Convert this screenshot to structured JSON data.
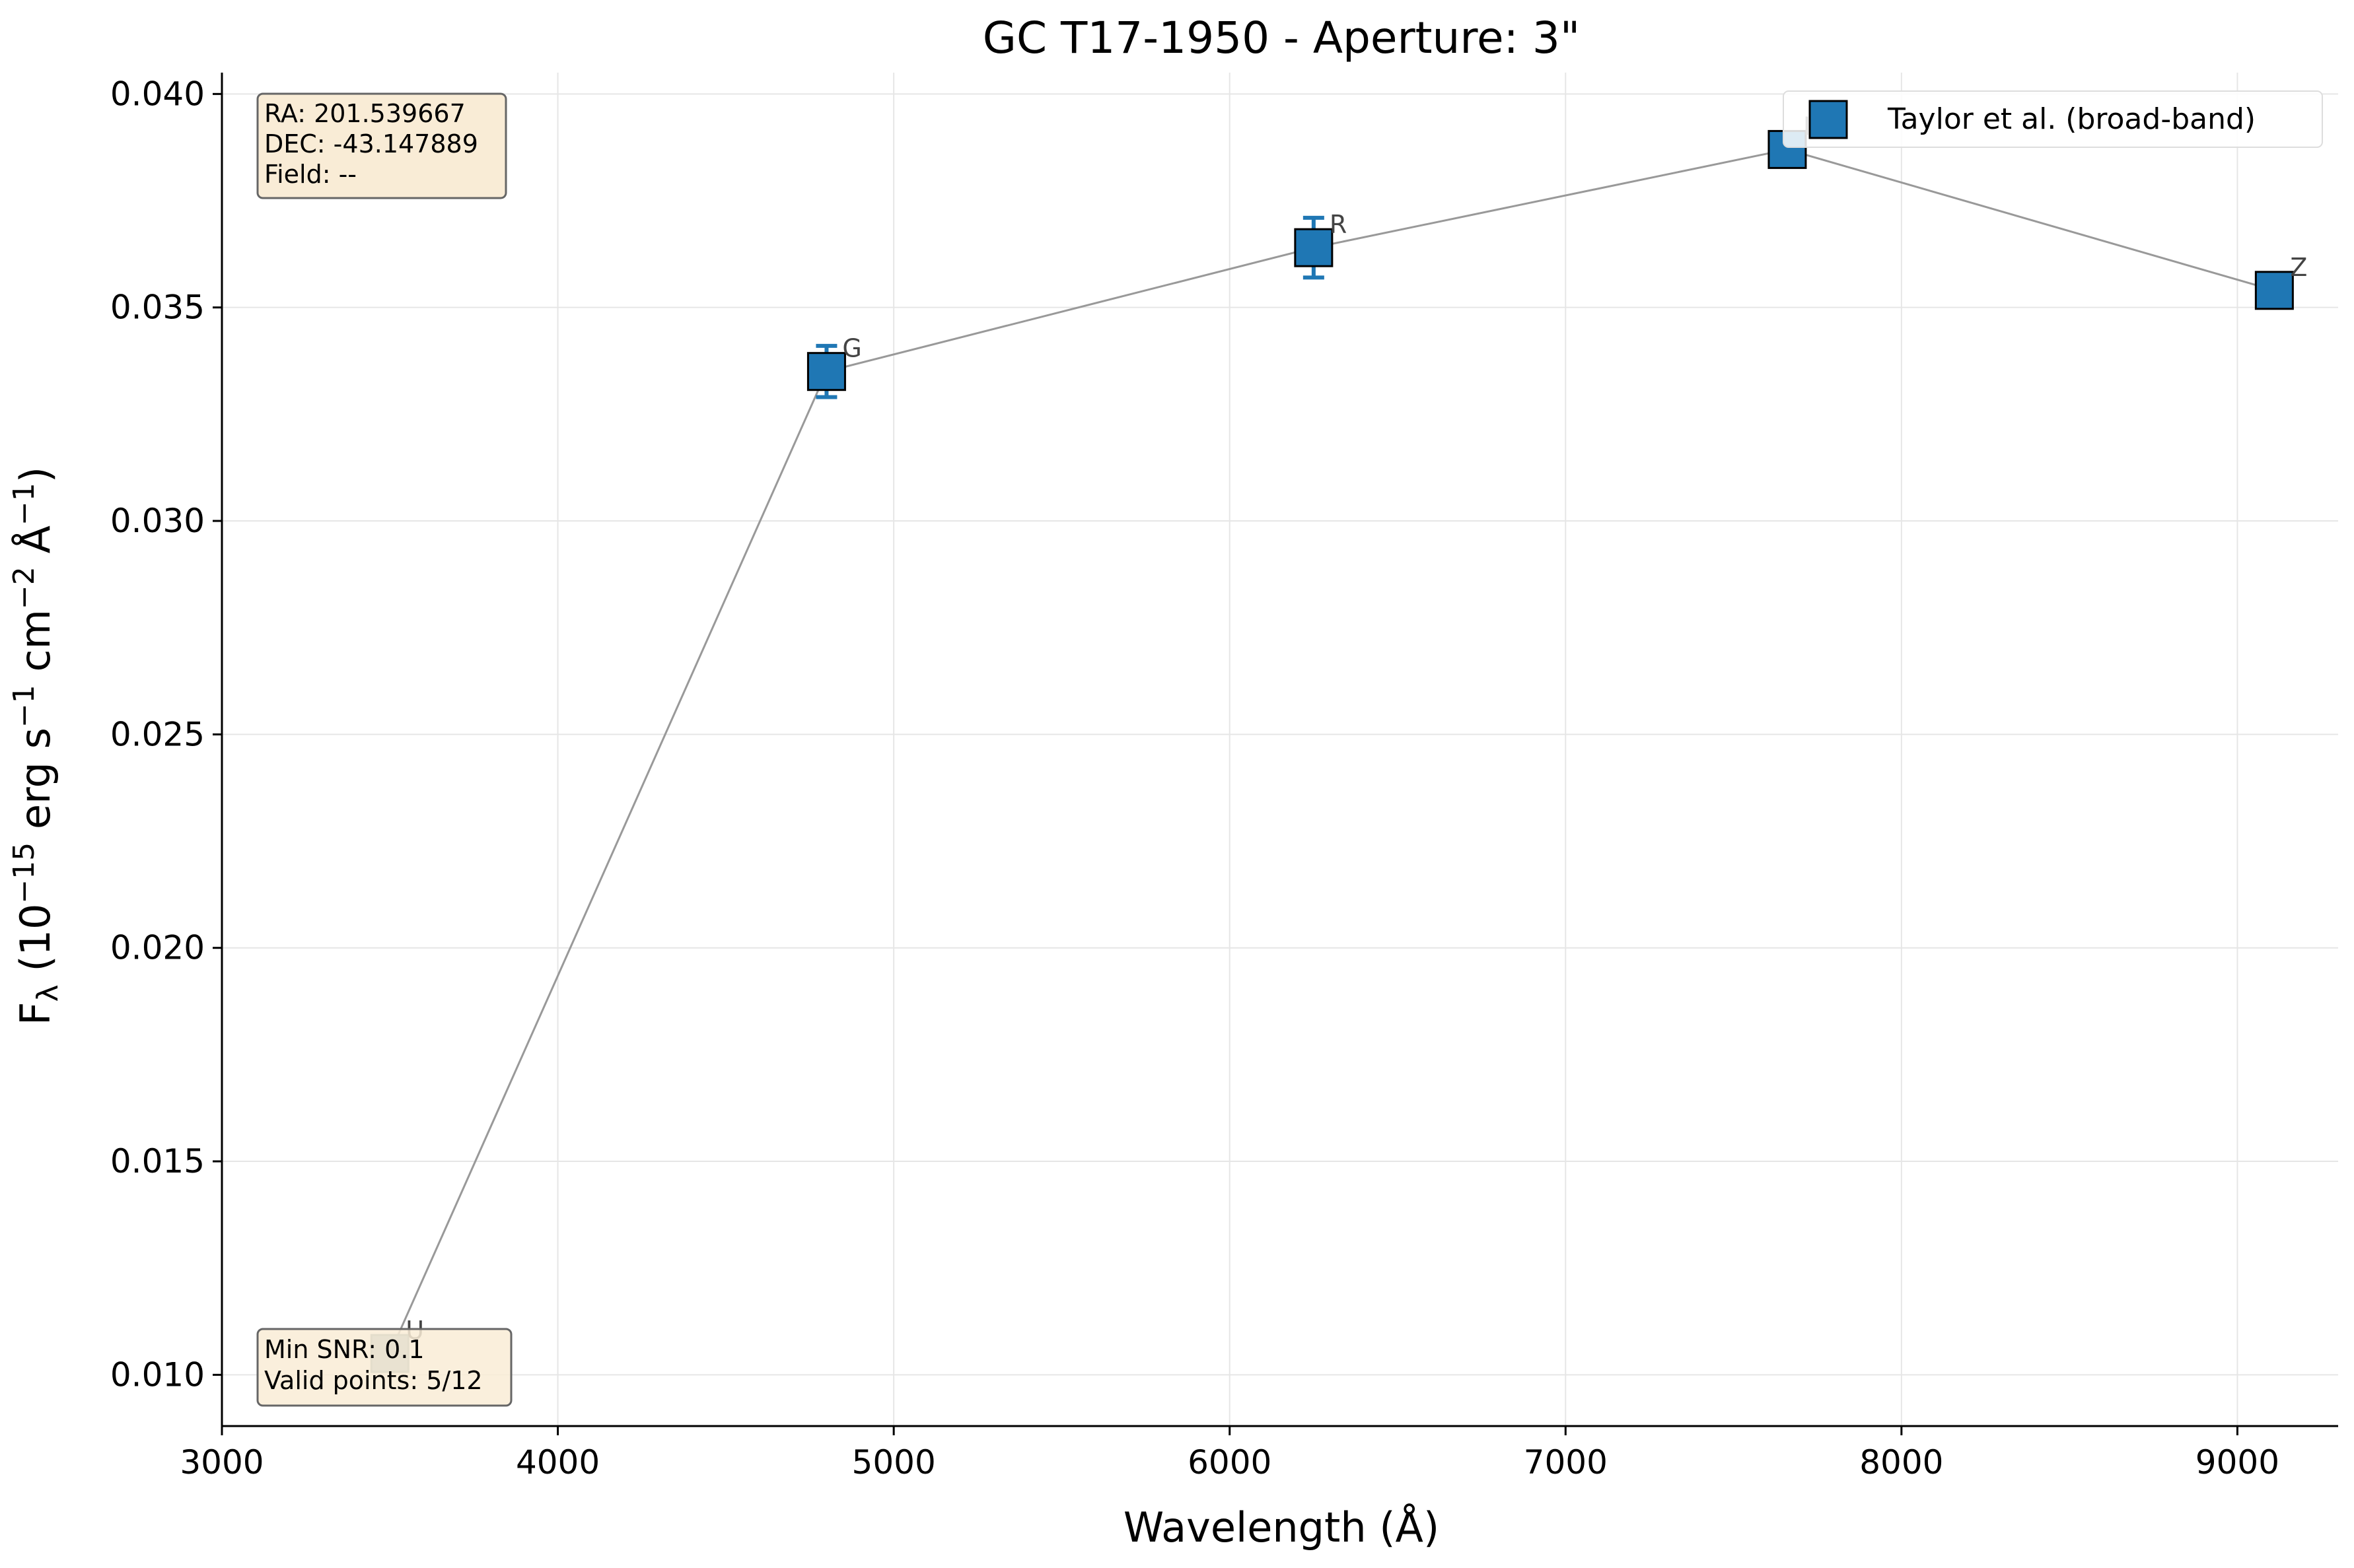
{
  "chart_data": {
    "type": "scatter",
    "title": "GC T17-1950 - Aperture: 3\"",
    "xlabel": "Wavelength (Å)",
    "ylabel": {
      "base": "F",
      "sub": "λ",
      "text1": " (10",
      "sup1": "−15",
      "text2": " erg s",
      "sup2": "−1",
      "text3": " cm",
      "sup3": "−2",
      "text4": " Å",
      "sup4": "−1",
      "text5": ")"
    },
    "xlim": [
      3000,
      9300
    ],
    "ylim": [
      0.0088,
      0.0405
    ],
    "xticks": [
      3000,
      4000,
      5000,
      6000,
      7000,
      8000,
      9000
    ],
    "yticks": [
      0.01,
      0.015,
      0.02,
      0.025,
      0.03,
      0.035,
      0.04
    ],
    "xtick_labels": [
      "3000",
      "4000",
      "5000",
      "6000",
      "7000",
      "8000",
      "9000"
    ],
    "ytick_labels": [
      "0.010",
      "0.015",
      "0.020",
      "0.025",
      "0.030",
      "0.035",
      "0.040"
    ],
    "grid": true,
    "legend_position": "top-right",
    "series": [
      {
        "name": "Taylor et al. (broad-band)",
        "color": "#1f77b4",
        "low_snr_color": "#8aa6b3",
        "points": [
          {
            "band": "U",
            "x": 3500,
            "y": 0.0105,
            "yerr": 0,
            "low_snr": true
          },
          {
            "band": "G",
            "x": 4800,
            "y": 0.0335,
            "yerr": 0.0006,
            "low_snr": false
          },
          {
            "band": "R",
            "x": 6250,
            "y": 0.0364,
            "yerr": 0.0007,
            "low_snr": false
          },
          {
            "band": "I",
            "x": 7660,
            "y": 0.0387,
            "yerr": 0,
            "low_snr": false
          },
          {
            "band": "Z",
            "x": 9110,
            "y": 0.0354,
            "yerr": 0,
            "low_snr": false
          }
        ]
      }
    ],
    "info_box_top": {
      "lines": [
        "RA: 201.539667",
        "DEC: -43.147889",
        "Field: --"
      ]
    },
    "info_box_bottom": {
      "lines": [
        "Min SNR: 0.1",
        "Valid points: 5/12"
      ]
    }
  }
}
